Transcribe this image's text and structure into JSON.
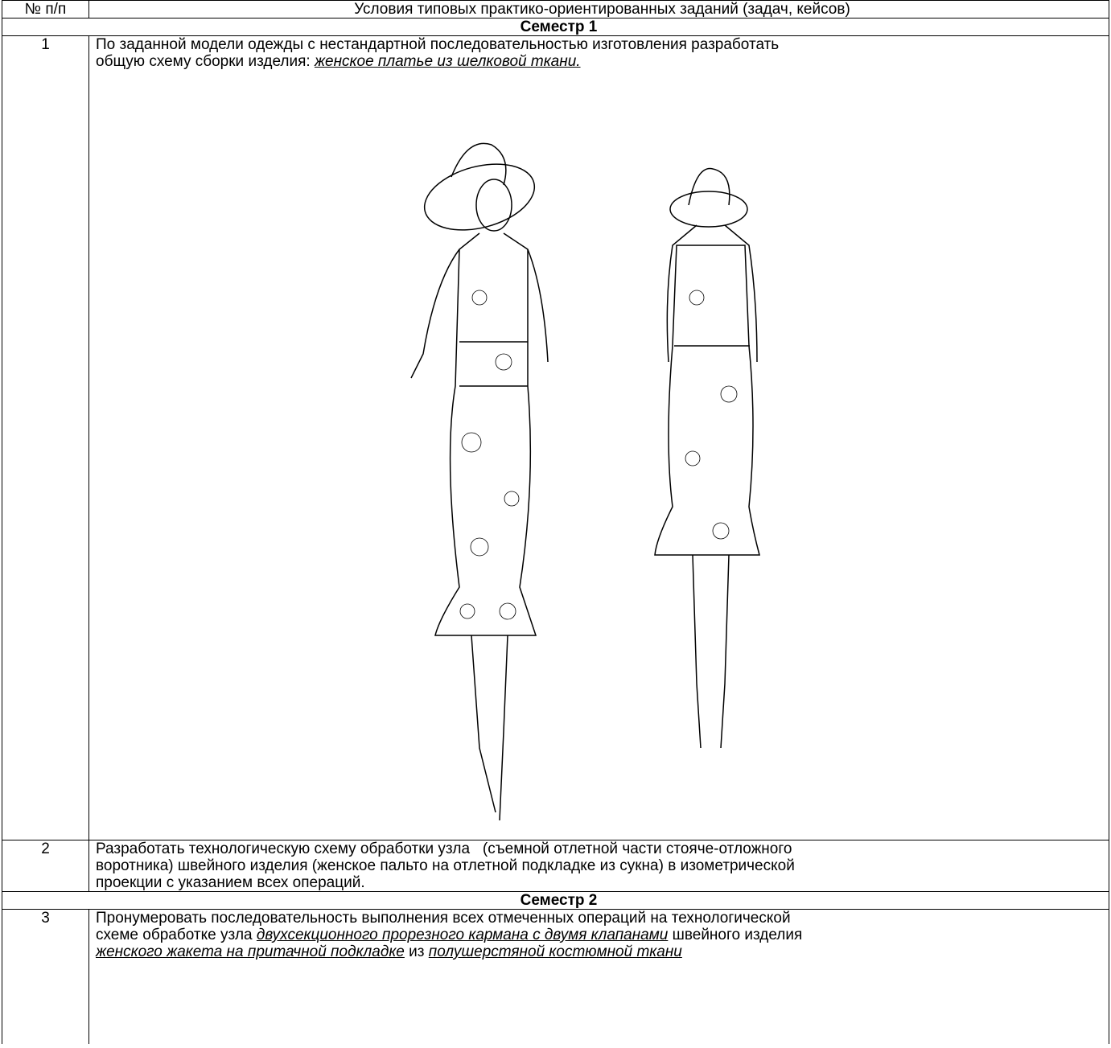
{
  "table": {
    "header": [
      "№ п/п",
      "Условия типовых практико-ориентированных   заданий (задач, кейсов)"
    ],
    "sections": [
      {
        "title": "Семестр 1",
        "rows": [
          {
            "number": "1",
            "lines": [
              [
                {
                  "text": "По заданной модели одежды с нестандартной последовательностью изготовления разработать"
                }
              ],
              [
                {
                  "text": "общую схему сборки изделия: "
                },
                {
                  "text": "женское платье из шелковой ткани.",
                  "em": true
                }
              ]
            ],
            "figure": true
          },
          {
            "number": "2",
            "lines": [
              [
                {
                  "text": "Разработать технологическую схему обработки узла   (съемной отлетной части стояче-отложного"
                }
              ],
              [
                {
                  "text": "воротника) швейного изделия (женское пальто на отлетной подкладке из сукна) в изометрической"
                }
              ],
              [
                {
                  "text": "проекции с указанием всех операций."
                }
              ]
            ]
          }
        ]
      },
      {
        "title": "Семестр 2",
        "rows": [
          {
            "number": "3",
            "lines": [
              [
                {
                  "text": "Пронумеровать последовательность выполнения всех отмеченных операций на технологической"
                }
              ],
              [
                {
                  "text": "схеме обработке узла "
                },
                {
                  "text": "двухсекционного прорезного кармана с двумя клапанами",
                  "em": true
                },
                {
                  "text": " швейного изделия"
                }
              ],
              [
                {
                  "text": "женского жакета на притачной подкладке",
                  "em": true
                },
                {
                  "text": " из "
                },
                {
                  "text": "полушерстяной костюмной ткани",
                  "em": true
                }
              ]
            ]
          }
        ]
      }
    ]
  }
}
